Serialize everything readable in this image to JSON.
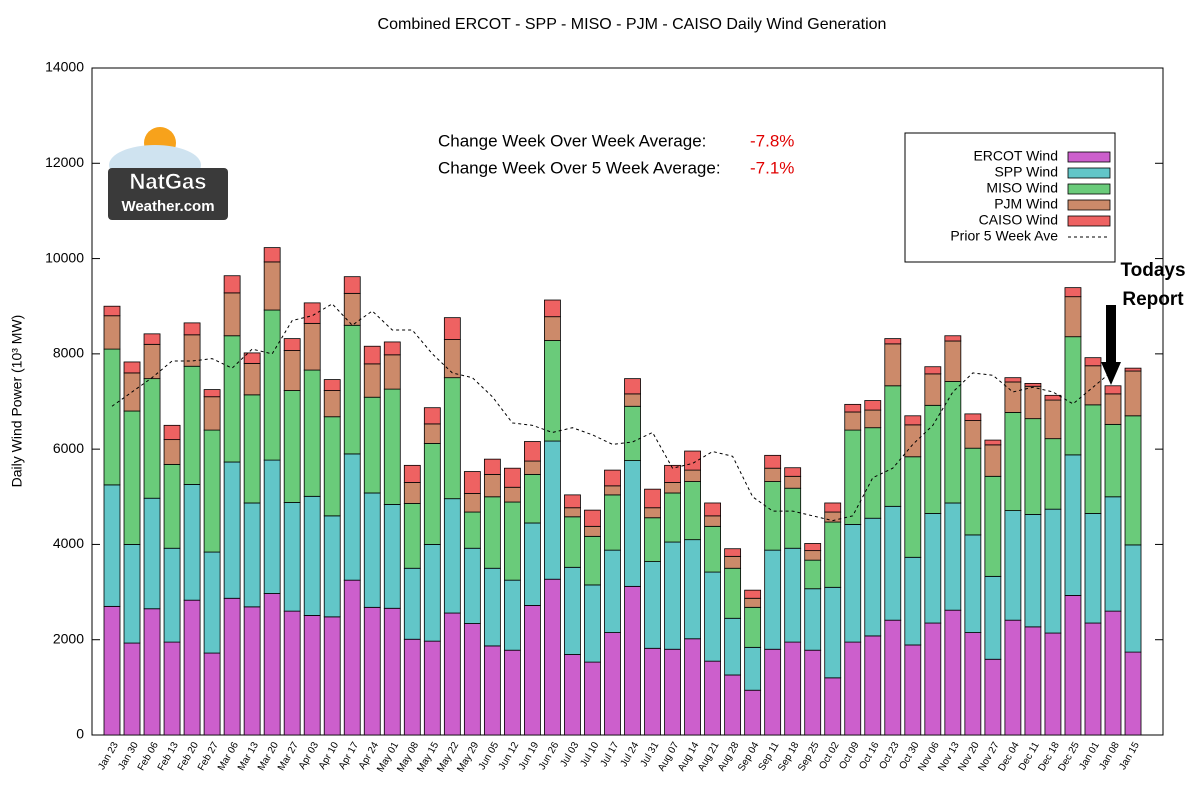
{
  "chart_data": {
    "type": "bar",
    "stacked": true,
    "title": "Combined ERCOT - SPP - MISO - PJM - CAISO Daily Wind Generation",
    "y_label": "Daily Wind Power (10³ MW)",
    "annotations": [
      {
        "text": "Change Week Over Week Average:",
        "value_text": "-7.8%"
      },
      {
        "text": "Change Week Over 5 Week Average:",
        "value_text": "-7.1%"
      }
    ],
    "report_note": [
      "Todays",
      "Report"
    ],
    "logo": [
      "NatGas",
      "Weather.com"
    ],
    "legend_position": "upper right",
    "ylim": [
      0,
      14000
    ],
    "yticks": [
      0,
      2000,
      4000,
      6000,
      8000,
      10000,
      12000,
      14000
    ],
    "categories": [
      "Jan 23",
      "Jan 30",
      "Feb 06",
      "Feb 13",
      "Feb 20",
      "Feb 27",
      "Mar 06",
      "Mar 13",
      "Mar 20",
      "Mar 27",
      "Apr 03",
      "Apr 10",
      "Apr 17",
      "Apr 24",
      "May 01",
      "May 08",
      "May 15",
      "May 22",
      "May 29",
      "Jun 05",
      "Jun 12",
      "Jun 19",
      "Jun 26",
      "Jul 03",
      "Jul 10",
      "Jul 17",
      "Jul 24",
      "Jul 31",
      "Aug 07",
      "Aug 14",
      "Aug 21",
      "Aug 28",
      "Sep 04",
      "Sep 11",
      "Sep 18",
      "Sep 25",
      "Oct 02",
      "Oct 09",
      "Oct 16",
      "Oct 23",
      "Oct 30",
      "Nov 06",
      "Nov 13",
      "Nov 20",
      "Nov 27",
      "Dec 04",
      "Dec 11",
      "Dec 18",
      "Dec 25",
      "Jan 01",
      "Jan 08",
      "Jan 15"
    ],
    "series": [
      {
        "name": "ERCOT Wind",
        "color": "#cc5fcc",
        "values": [
          2700,
          1930,
          2650,
          1950,
          2830,
          1720,
          2870,
          2690,
          2970,
          2600,
          2510,
          2480,
          3250,
          2680,
          2660,
          2010,
          1970,
          2560,
          2340,
          1870,
          1780,
          2720,
          3270,
          1690,
          1530,
          2150,
          3120,
          1820,
          1800,
          2020,
          1550,
          1260,
          940,
          1800,
          1950,
          1780,
          1200,
          1950,
          2080,
          2410,
          1890,
          2350,
          2620,
          2150,
          1590,
          2410,
          2270,
          2140,
          2930,
          2350,
          2600,
          1740
        ]
      },
      {
        "name": "SPP Wind",
        "color": "#62c6c8",
        "values": [
          2550,
          2070,
          2320,
          1970,
          2430,
          2120,
          2860,
          2180,
          2800,
          2280,
          2500,
          2120,
          2650,
          2400,
          2180,
          1490,
          2030,
          2400,
          1580,
          1630,
          1470,
          1730,
          2900,
          1830,
          1620,
          1730,
          2640,
          1820,
          2250,
          2080,
          1870,
          1190,
          900,
          2080,
          1970,
          1290,
          1900,
          2470,
          2470,
          2390,
          1840,
          2300,
          2250,
          2050,
          1740,
          2300,
          2360,
          2600,
          2950,
          2300,
          2400,
          2250
        ]
      },
      {
        "name": "MISO Wind",
        "color": "#6acb7a",
        "values": [
          2850,
          2800,
          2510,
          1760,
          2480,
          2560,
          2650,
          2270,
          3150,
          2350,
          2650,
          2080,
          2700,
          2010,
          2420,
          1360,
          2120,
          2540,
          760,
          1500,
          1640,
          1020,
          2110,
          1060,
          1020,
          1160,
          1140,
          920,
          1030,
          1220,
          960,
          1050,
          840,
          1440,
          1260,
          600,
          1370,
          1980,
          1900,
          2530,
          2110,
          2270,
          2550,
          1820,
          2100,
          2060,
          2010,
          1480,
          2480,
          2280,
          1520,
          2710
        ]
      },
      {
        "name": "PJM Wind",
        "color": "#cc8a6a",
        "values": [
          700,
          800,
          720,
          520,
          660,
          700,
          900,
          660,
          1010,
          840,
          980,
          550,
          670,
          700,
          720,
          440,
          410,
          800,
          390,
          470,
          310,
          280,
          500,
          190,
          210,
          190,
          260,
          210,
          220,
          240,
          220,
          250,
          190,
          280,
          250,
          200,
          210,
          380,
          370,
          880,
          670,
          660,
          850,
          580,
          660,
          640,
          680,
          810,
          840,
          820,
          640,
          940
        ]
      },
      {
        "name": "CAISO Wind",
        "color": "#ee6262",
        "values": [
          200,
          230,
          220,
          300,
          250,
          150,
          360,
          220,
          300,
          250,
          430,
          230,
          350,
          370,
          270,
          360,
          340,
          460,
          460,
          320,
          400,
          410,
          350,
          270,
          340,
          330,
          320,
          390,
          360,
          400,
          270,
          160,
          170,
          270,
          180,
          150,
          190,
          160,
          200,
          110,
          190,
          150,
          110,
          140,
          100,
          90,
          60,
          100,
          190,
          170,
          170,
          60
        ]
      },
      {
        "name": "Prior 5 Week Ave",
        "color": "#000000",
        "kind": "line",
        "values": [
          6900,
          7200,
          7500,
          7850,
          7850,
          7900,
          7700,
          8100,
          8000,
          8700,
          8800,
          9050,
          8600,
          8900,
          8500,
          8500,
          8000,
          7600,
          7500,
          7100,
          6550,
          6500,
          6350,
          6450,
          6300,
          6100,
          6150,
          6350,
          5600,
          5700,
          5950,
          5850,
          5000,
          4700,
          4700,
          4600,
          4500,
          4600,
          5400,
          5600,
          6100,
          6500,
          7200,
          7600,
          7550,
          7200,
          7300,
          7200,
          6950,
          7300,
          7650,
          null
        ]
      }
    ]
  }
}
